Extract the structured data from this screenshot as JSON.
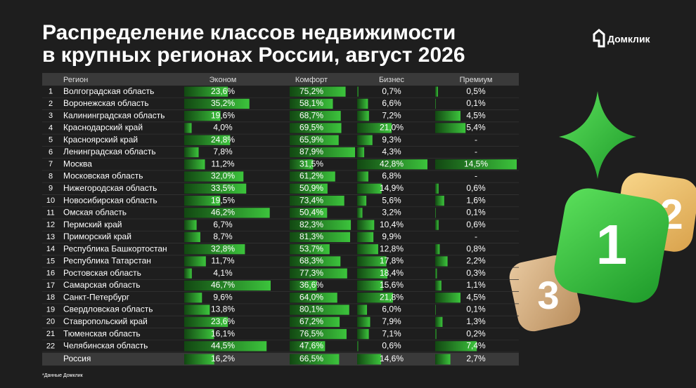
{
  "header": {
    "title_lines": [
      "Распределение классов недвижимости",
      "в крупных регионах России, август 2026"
    ],
    "logo": "Домклик"
  },
  "table": {
    "columns": [
      "Регион",
      "Эконом",
      "Комфорт",
      "Бизнес",
      "Премиум"
    ],
    "rows": [
      {
        "n": "1",
        "region": "Волгоградская область",
        "values": [
          23.6,
          75.2,
          0.7,
          0.5
        ],
        "labels": [
          "23,6%",
          "75,2%",
          "0,7%",
          "0,5%"
        ]
      },
      {
        "n": "2",
        "region": "Воронежская область",
        "values": [
          35.2,
          58.1,
          6.6,
          0.1
        ],
        "labels": [
          "35,2%",
          "58,1%",
          "6,6%",
          "0,1%"
        ]
      },
      {
        "n": "3",
        "region": "Калининградская область",
        "values": [
          19.6,
          68.7,
          7.2,
          4.5
        ],
        "labels": [
          "19,6%",
          "68,7%",
          "7,2%",
          "4,5%"
        ]
      },
      {
        "n": "4",
        "region": "Краснодарский край",
        "values": [
          4.0,
          69.5,
          21.0,
          5.4
        ],
        "labels": [
          "4,0%",
          "69,5%",
          "21,0%",
          "5,4%"
        ]
      },
      {
        "n": "5",
        "region": "Красноярский край",
        "values": [
          24.8,
          65.9,
          9.3,
          null
        ],
        "labels": [
          "24,8%",
          "65,9%",
          "9,3%",
          "-"
        ]
      },
      {
        "n": "6",
        "region": "Ленинградская область",
        "values": [
          7.8,
          87.9,
          4.3,
          null
        ],
        "labels": [
          "7,8%",
          "87,9%",
          "4,3%",
          "-"
        ]
      },
      {
        "n": "7",
        "region": "Москва",
        "values": [
          11.2,
          31.5,
          42.8,
          14.5
        ],
        "labels": [
          "11,2%",
          "31,5%",
          "42,8%",
          "14,5%"
        ]
      },
      {
        "n": "8",
        "region": "Московская область",
        "values": [
          32.0,
          61.2,
          6.8,
          null
        ],
        "labels": [
          "32,0%",
          "61,2%",
          "6,8%",
          "-"
        ]
      },
      {
        "n": "9",
        "region": "Нижегородская область",
        "values": [
          33.5,
          50.9,
          14.9,
          0.6
        ],
        "labels": [
          "33,5%",
          "50,9%",
          "14,9%",
          "0,6%"
        ]
      },
      {
        "n": "10",
        "region": "Новосибирская область",
        "values": [
          19.5,
          73.4,
          5.6,
          1.6
        ],
        "labels": [
          "19,5%",
          "73,4%",
          "5,6%",
          "1,6%"
        ]
      },
      {
        "n": "11",
        "region": "Омская область",
        "values": [
          46.2,
          50.4,
          3.2,
          0.1
        ],
        "labels": [
          "46,2%",
          "50,4%",
          "3,2%",
          "0,1%"
        ]
      },
      {
        "n": "12",
        "region": "Пермский край",
        "values": [
          6.7,
          82.3,
          10.4,
          0.6
        ],
        "labels": [
          "6,7%",
          "82,3%",
          "10,4%",
          "0,6%"
        ]
      },
      {
        "n": "13",
        "region": "Приморский край",
        "values": [
          8.7,
          81.3,
          9.9,
          null
        ],
        "labels": [
          "8,7%",
          "81,3%",
          "9,9%",
          "-"
        ]
      },
      {
        "n": "14",
        "region": "Республика Башкортостан",
        "values": [
          32.8,
          53.7,
          12.8,
          0.8
        ],
        "labels": [
          "32,8%",
          "53,7%",
          "12,8%",
          "0,8%"
        ]
      },
      {
        "n": "15",
        "region": "Республика Татарстан",
        "values": [
          11.7,
          68.3,
          17.8,
          2.2
        ],
        "labels": [
          "11,7%",
          "68,3%",
          "17,8%",
          "2,2%"
        ]
      },
      {
        "n": "16",
        "region": "Ростовская область",
        "values": [
          4.1,
          77.3,
          18.4,
          0.3
        ],
        "labels": [
          "4,1%",
          "77,3%",
          "18,4%",
          "0,3%"
        ]
      },
      {
        "n": "17",
        "region": "Самарская область",
        "values": [
          46.7,
          36.6,
          15.6,
          1.1
        ],
        "labels": [
          "46,7%",
          "36,6%",
          "15,6%",
          "1,1%"
        ]
      },
      {
        "n": "18",
        "region": "Санкт-Петербург",
        "values": [
          9.6,
          64.0,
          21.8,
          4.5
        ],
        "labels": [
          "9,6%",
          "64,0%",
          "21,8%",
          "4,5%"
        ]
      },
      {
        "n": "19",
        "region": "Свердловская область",
        "values": [
          13.8,
          80.1,
          6.0,
          0.1
        ],
        "labels": [
          "13,8%",
          "80,1%",
          "6,0%",
          "0,1%"
        ]
      },
      {
        "n": "20",
        "region": "Ставропольский край",
        "values": [
          23.6,
          67.2,
          7.9,
          1.3
        ],
        "labels": [
          "23,6%",
          "67,2%",
          "7,9%",
          "1,3%"
        ]
      },
      {
        "n": "21",
        "region": "Тюменская область",
        "values": [
          16.1,
          76.5,
          7.1,
          0.2
        ],
        "labels": [
          "16,1%",
          "76,5%",
          "7,1%",
          "0,2%"
        ]
      },
      {
        "n": "22",
        "region": "Челябинская область",
        "values": [
          44.5,
          47.6,
          0.6,
          7.4
        ],
        "labels": [
          "44,5%",
          "47,6%",
          "0,6%",
          "7,4%"
        ]
      }
    ],
    "total": {
      "region": "Россия",
      "values": [
        16.2,
        66.5,
        14.6,
        2.7
      ],
      "labels": [
        "16,2%",
        "66,5%",
        "14,6%",
        "2,7%"
      ]
    }
  },
  "footnote": "*Данные Домклик",
  "decor": {
    "tiles": [
      "1",
      "2",
      "3"
    ]
  }
}
